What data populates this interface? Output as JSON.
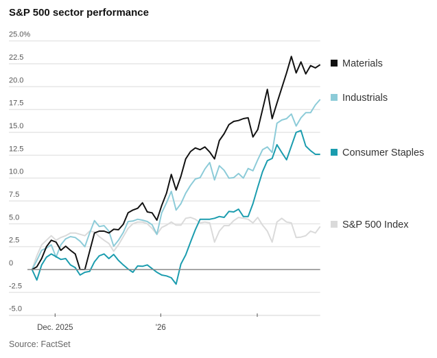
{
  "title": "S&P 500 sector performance",
  "source": "Source: FactSet",
  "chart_data": {
    "type": "line",
    "title": "S&P 500 sector performance",
    "xlabel": "",
    "ylabel": "",
    "ylim": [
      -5,
      25
    ],
    "y_ticks": [
      25,
      22.5,
      20,
      17.5,
      15,
      12.5,
      10,
      7.5,
      5,
      2.5,
      0,
      -2.5,
      -5
    ],
    "y_tick_labels": [
      "25.0%",
      "22.5",
      "20.0",
      "17.5",
      "15.0",
      "12.5",
      "10.0",
      "7.5",
      "5.0",
      "2.5",
      "0",
      "-2.5",
      "-5.0"
    ],
    "x_ticks": [
      {
        "index": 4.8,
        "label": "Dec. 2025"
      },
      {
        "index": 26.8,
        "label": "'26"
      },
      {
        "index": 46.9,
        "label": ""
      }
    ],
    "grid": true,
    "legend": "right, labels at line ends",
    "series": [
      {
        "name": "Materials",
        "color": "#111111",
        "values": [
          0,
          0.3,
          1.2,
          2.5,
          3.2,
          3.0,
          2.1,
          2.55,
          2.1,
          1.7,
          0,
          0,
          2.0,
          4.0,
          4.2,
          4.2,
          4.0,
          4.4,
          4.35,
          4.95,
          6.2,
          6.5,
          6.7,
          7.3,
          6.3,
          6.2,
          5.4,
          7.0,
          8.35,
          10.4,
          8.7,
          10.2,
          12.1,
          12.9,
          13.3,
          13.1,
          13.4,
          12.85,
          12.1,
          14.1,
          14.85,
          15.85,
          16.2,
          16.3,
          16.5,
          16.6,
          14.5,
          15.3,
          17.5,
          19.7,
          16.5,
          18.2,
          19.85,
          21.5,
          23.3,
          21.5,
          22.7,
          21.4,
          22.3,
          22.05,
          22.4
        ]
      },
      {
        "name": "Industrials",
        "color": "#8ccbd8",
        "values": [
          0,
          1.0,
          2.1,
          2.35,
          2.7,
          1.35,
          2.7,
          3.35,
          3.6,
          3.5,
          3.1,
          2.5,
          4.0,
          5.35,
          4.7,
          4.8,
          4.2,
          2.55,
          3.2,
          4.05,
          5.25,
          5.3,
          5.5,
          5.4,
          5.25,
          4.9,
          3.85,
          6.2,
          7.3,
          8.55,
          6.5,
          7.2,
          8.35,
          9.2,
          9.9,
          10.05,
          11.0,
          11.7,
          9.8,
          11.35,
          10.85,
          10.0,
          10.05,
          10.5,
          10.0,
          11.05,
          10.8,
          12.0,
          13.1,
          13.4,
          12.8,
          16.0,
          16.35,
          16.5,
          17.0,
          15.7,
          16.6,
          17.15,
          17.15,
          18.0,
          18.6
        ]
      },
      {
        "name": "Consumer Staples",
        "color": "#1a9cae",
        "values": [
          0,
          -1.15,
          0.5,
          1.35,
          1.7,
          1.4,
          1.1,
          1.2,
          0.5,
          0.2,
          -0.6,
          -0.3,
          -0.2,
          0.85,
          1.5,
          1.7,
          1.2,
          1.65,
          1.0,
          0.5,
          0.05,
          -0.3,
          0.4,
          0.35,
          0.5,
          0.1,
          -0.3,
          -0.6,
          -0.7,
          -0.9,
          -1.6,
          0.6,
          1.6,
          3.0,
          4.35,
          5.5,
          5.5,
          5.5,
          5.6,
          5.8,
          5.7,
          6.35,
          6.3,
          6.6,
          5.8,
          5.8,
          7.2,
          9.0,
          10.7,
          11.9,
          12.15,
          13.65,
          12.8,
          12.0,
          13.5,
          15.0,
          15.2,
          13.5,
          13.0,
          12.6,
          12.6
        ]
      },
      {
        "name": "S&P 500 Index",
        "color": "#dadada",
        "values": [
          0,
          1.5,
          2.7,
          3.2,
          3.7,
          3.2,
          3.5,
          3.7,
          4.0,
          4.0,
          3.85,
          3.7,
          4.2,
          4.1,
          3.6,
          3.2,
          2.85,
          2.0,
          2.7,
          3.6,
          4.5,
          5.0,
          5.2,
          5.2,
          5.0,
          4.5,
          3.85,
          4.6,
          4.85,
          5.2,
          4.85,
          4.85,
          5.6,
          5.7,
          5.5,
          5.1,
          5.2,
          5.1,
          3.0,
          4.2,
          4.8,
          4.8,
          5.35,
          5.7,
          5.6,
          5.5,
          5.1,
          5.7,
          4.85,
          4.2,
          3.0,
          5.2,
          5.6,
          5.2,
          5.1,
          3.5,
          3.55,
          3.7,
          4.2,
          4.0,
          4.7
        ]
      }
    ]
  }
}
